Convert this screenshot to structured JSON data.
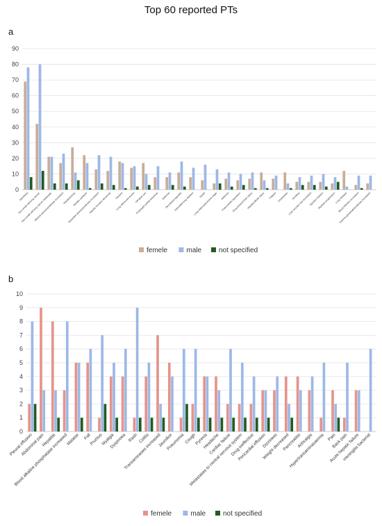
{
  "title": "Top 60 reported PTs",
  "chart_data": [
    {
      "panel_label": "a",
      "type": "bar",
      "ylim": [
        0,
        90
      ],
      "yticks": [
        0,
        10,
        20,
        30,
        40,
        50,
        60,
        70,
        80,
        90
      ],
      "grid": "horizontal",
      "legend_position": "bottom",
      "categories": [
        "Diarrhoea",
        "Non-small cell lung cancer",
        "Non-small cell lung cancer metastatic",
        "Alanine aminotransferase increased",
        "Hepatotoxicity",
        "Hepatic cytolysis",
        "Aspartate aminotransferase increased",
        "Hepatic function abnormal",
        "Nausea",
        "Lung adenocarcinoma",
        "Off label use",
        "Prolonged partial response",
        "Asthenia",
        "Decreased appetite",
        "Interstitial lung disease",
        "Death",
        "Lung adenocarcinoma stage",
        "Asthenia",
        "Pneumonitis aspiration",
        "Drug-induced liver injury",
        "Hepatocellular injury",
        "Fatigue",
        "Cholestasis",
        "Vomiting",
        "Liver function test increased",
        "Ejection fraction",
        "Disease progression",
        "Lung disease",
        "Blood bilirubin increased",
        "Gamma-glutamyltransferase increased"
      ],
      "series": [
        {
          "name": "femele",
          "color": "#c8ad98",
          "values": [
            69,
            42,
            21,
            17,
            27,
            22,
            13,
            12,
            18,
            14,
            17,
            8,
            8,
            11,
            8,
            6,
            4,
            7,
            6,
            7,
            11,
            7,
            11,
            5,
            5,
            5,
            4,
            12,
            3,
            4
          ]
        },
        {
          "name": "male",
          "color": "#9db8e6",
          "values": [
            78,
            80,
            21,
            23,
            11,
            17,
            22,
            21,
            17,
            15,
            10,
            15,
            11,
            18,
            14,
            16,
            13,
            11,
            10,
            11,
            6,
            9,
            4,
            8,
            9,
            10,
            8,
            2,
            9,
            9
          ]
        },
        {
          "name": "not specified",
          "color": "#225c22",
          "values": [
            8,
            12,
            4,
            4,
            6,
            1,
            4,
            3,
            1,
            2,
            3,
            0,
            3,
            2,
            0,
            0,
            4,
            2,
            3,
            1,
            1,
            0,
            1,
            3,
            3,
            2,
            5,
            0,
            1,
            0
          ]
        }
      ]
    },
    {
      "panel_label": "b",
      "type": "bar",
      "ylim": [
        0,
        10
      ],
      "yticks": [
        0,
        1,
        2,
        3,
        4,
        5,
        6,
        7,
        8,
        9,
        10
      ],
      "grid": "horizontal",
      "legend_position": "bottom",
      "categories": [
        "Pleural effusion",
        "Abdominal pain",
        "Hepatitis",
        "Blood alkaline phosphatase increased",
        "Malaise",
        "Fall",
        "Pruritus",
        "Myalgia",
        "Dyspnoea",
        "Rash",
        "Colitis",
        "Transaminases increased",
        "Jaundice",
        "Pneumonia",
        "Cough",
        "Pyrexia",
        "Headache",
        "Cardiac failure",
        "Metastases to central nervous system",
        "Drug ineffective",
        "Pericardial effusion",
        "Dizziness",
        "Weight decreased",
        "Pancreatitis",
        "Arthralgia",
        "Hypertransaminasaemia",
        "Pain",
        "Back pain",
        "Acute hepatic failure",
        "meningitis bacterial"
      ],
      "series": [
        {
          "name": "femele",
          "color": "#e4948c",
          "values": [
            2,
            9,
            8,
            3,
            5,
            5,
            1,
            4,
            4,
            1,
            4,
            7,
            5,
            1,
            2,
            4,
            4,
            2,
            2,
            2,
            3,
            3,
            4,
            4,
            3,
            1,
            3,
            1,
            3,
            0
          ]
        },
        {
          "name": "male",
          "color": "#9db8e6",
          "values": [
            8,
            3,
            3,
            8,
            5,
            6,
            7,
            5,
            6,
            9,
            5,
            2,
            4,
            6,
            6,
            4,
            3,
            6,
            5,
            4,
            3,
            4,
            2,
            3,
            4,
            5,
            2,
            5,
            3,
            6
          ]
        },
        {
          "name": "not specified",
          "color": "#225c22",
          "values": [
            2,
            0,
            1,
            0,
            1,
            0,
            2,
            1,
            0,
            1,
            1,
            1,
            0,
            2,
            1,
            1,
            1,
            1,
            1,
            1,
            1,
            0,
            1,
            0,
            0,
            0,
            1,
            0,
            0,
            0
          ]
        }
      ]
    }
  ]
}
